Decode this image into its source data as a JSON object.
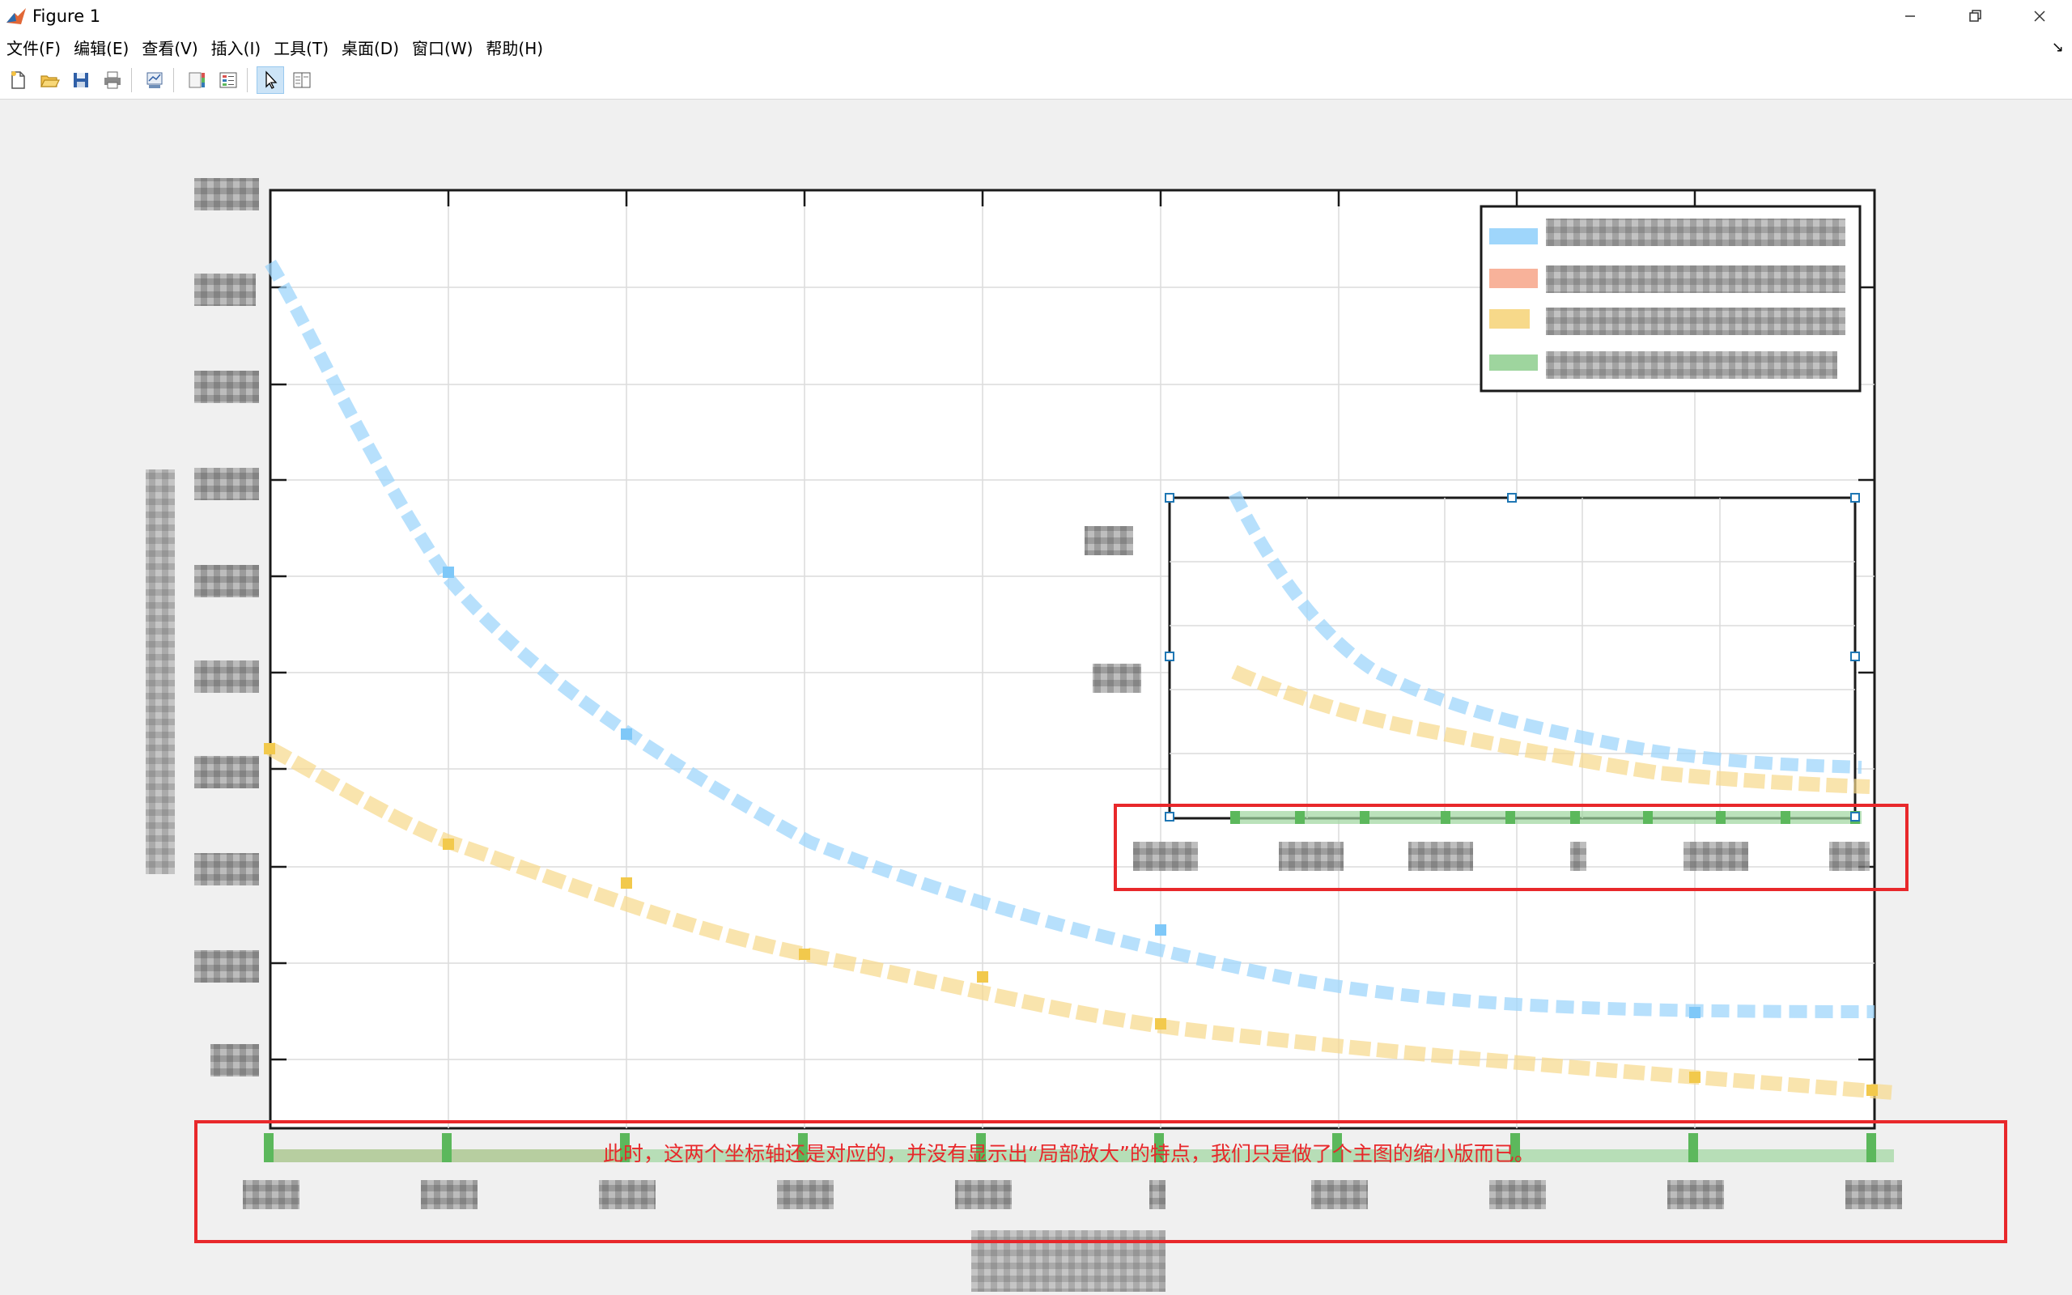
{
  "window": {
    "title": "Figure 1",
    "controls": [
      "minimize-icon",
      "restore-icon",
      "close-icon"
    ]
  },
  "menubar": {
    "items": [
      "文件(F)",
      "编辑(E)",
      "查看(V)",
      "插入(I)",
      "工具(T)",
      "桌面(D)",
      "窗口(W)",
      "帮助(H)"
    ]
  },
  "toolbar": {
    "buttons": [
      "new-figure-icon",
      "open-file-icon",
      "save-icon",
      "print-icon",
      "link-plot-icon",
      "insert-colorbar-icon",
      "insert-legend-icon",
      "edit-plot-arrow-icon",
      "property-editor-icon"
    ],
    "active": "edit-plot-arrow-icon"
  },
  "annotation": {
    "text": "此时，这两个坐标轴还是对应的，并没有显示出“局部放大”的特点，我们只是做了个主图的缩小版而已。",
    "color": "#e8282b"
  },
  "colors": {
    "series_blue": "#7fc8f8",
    "series_yellow": "#f2c94c",
    "series_green": "#5cb85c",
    "series_orange": "#f08060",
    "highlight_red": "#e8282b",
    "selection_blue": "#1f77b4"
  }
}
